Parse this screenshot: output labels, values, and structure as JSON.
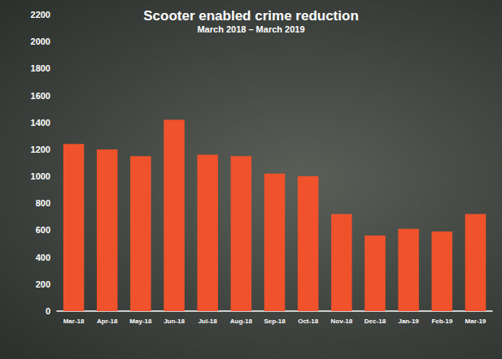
{
  "chart_data": {
    "type": "bar",
    "title": "Scooter enabled crime reduction",
    "subtitle": "March 2018 – March 2019",
    "categories": [
      "Mar-18",
      "Apr-18",
      "May-18",
      "Jun-18",
      "Jul-18",
      "Aug-18",
      "Sep-18",
      "Oct-18",
      "Nov-18",
      "Dec-18",
      "Jan-19",
      "Feb-19",
      "Mar-19"
    ],
    "values": [
      1240,
      1200,
      1150,
      1420,
      1160,
      1150,
      1020,
      1000,
      720,
      560,
      610,
      590,
      720
    ],
    "color": "#f0522b",
    "ylim": [
      0,
      2200
    ],
    "yticks": [
      0,
      200,
      400,
      600,
      800,
      1000,
      1200,
      1400,
      1600,
      1800,
      2000,
      2200
    ],
    "grid": false
  }
}
